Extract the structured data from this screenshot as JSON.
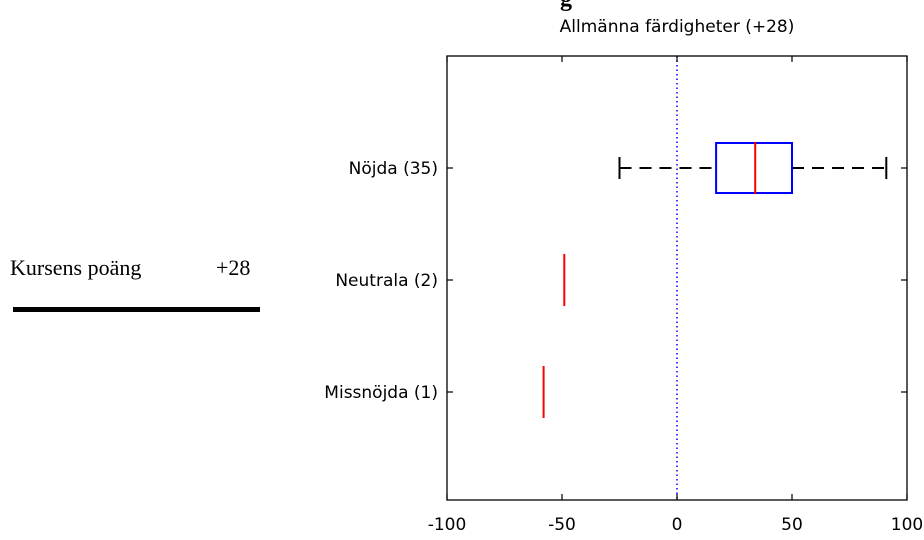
{
  "side_panel": {
    "score_name": "Kursens poäng",
    "score_value": "+28",
    "clipped_heading": "g"
  },
  "chart_data": {
    "type": "boxplot",
    "orientation": "horizontal",
    "title": "Allmänna färdigheter (+28)",
    "xlabel": "",
    "ylabel": "",
    "xlim": [
      -100,
      100
    ],
    "xticks": [
      -100,
      -50,
      0,
      50,
      100
    ],
    "xtick_labels": [
      "-100",
      "-50",
      "0",
      "50",
      "100"
    ],
    "reference_line": {
      "x": 0,
      "style": "dotted",
      "color": "#0000ff"
    },
    "groups": [
      {
        "label": "Nöjda (35)",
        "whisker_low": -25,
        "q1": 17,
        "median": 34,
        "q3": 50,
        "whisker_high": 91
      },
      {
        "label": "Neutrala (2)",
        "median": -49
      },
      {
        "label": "Missnöjda (1)",
        "median": -58
      }
    ],
    "colors": {
      "box": "#0000ff",
      "median": "#ff0000",
      "whisker": "#000000",
      "reference": "#0000ff",
      "axes": "#000000"
    },
    "grid": false,
    "legend": "none"
  }
}
